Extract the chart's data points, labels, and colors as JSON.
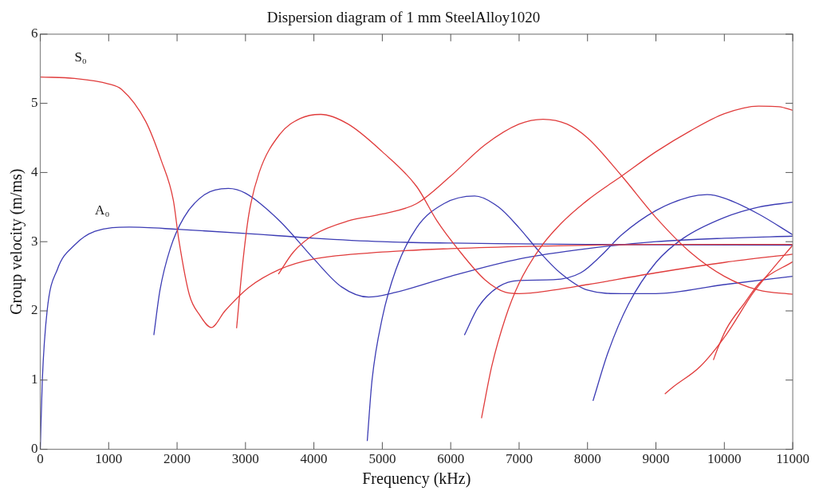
{
  "chart_data": {
    "type": "line",
    "title": "Dispersion diagram of 1 mm SteelAlloy1020",
    "xlabel": "Frequency (kHz)",
    "ylabel": "Group velocity (m/ms)",
    "xlim": [
      0,
      11000
    ],
    "xticks": [
      0,
      1000,
      2000,
      3000,
      4000,
      5000,
      6000,
      7000,
      8000,
      9000,
      10000,
      11000
    ],
    "ylim": [
      0,
      6
    ],
    "yticks": [
      0,
      1,
      2,
      3,
      4,
      5,
      6
    ],
    "grid": false,
    "legend": false,
    "marker": "none",
    "line_style": "solid",
    "series": [
      {
        "name": "S₀",
        "color": "#e03c3c",
        "x": [
          0,
          500,
          1000,
          1190,
          1540,
          1770,
          1945,
          2025,
          2180,
          2330,
          2500,
          2700,
          3050,
          3500,
          4000,
          5000,
          6000,
          7000,
          8000,
          9000,
          11000
        ],
        "values": [
          5.38,
          5.36,
          5.28,
          5.2,
          4.74,
          4.17,
          3.6,
          3.03,
          2.23,
          1.94,
          1.76,
          2.0,
          2.34,
          2.6,
          2.75,
          2.85,
          2.9,
          2.93,
          2.95,
          2.96,
          2.96
        ]
      },
      {
        "color": "#e03c3c",
        "x": [
          2870,
          2950,
          3050,
          3200,
          3500,
          3800,
          4100,
          4500,
          5000,
          5500,
          5800,
          6100,
          6500,
          6800,
          7000,
          7500,
          8000,
          9000,
          10000,
          11000
        ],
        "values": [
          1.75,
          2.6,
          3.4,
          4.0,
          4.55,
          4.78,
          4.84,
          4.7,
          4.3,
          3.8,
          3.3,
          2.9,
          2.45,
          2.27,
          2.25,
          2.3,
          2.38,
          2.55,
          2.7,
          2.82
        ]
      },
      {
        "color": "#e03c3c",
        "x": [
          3480,
          3700,
          4000,
          4500,
          5000,
          5500,
          6000,
          6500,
          7000,
          7350,
          7700,
          8000,
          8500,
          9000,
          9500,
          10000,
          10500,
          11000
        ],
        "values": [
          2.53,
          2.85,
          3.1,
          3.3,
          3.4,
          3.55,
          3.95,
          4.4,
          4.7,
          4.77,
          4.7,
          4.5,
          3.95,
          3.35,
          2.85,
          2.5,
          2.3,
          2.24
        ]
      },
      {
        "color": "#e03c3c",
        "x": [
          6450,
          6600,
          6800,
          7000,
          7300,
          7600,
          8000,
          8500,
          9000,
          9500,
          10000,
          10500,
          10800,
          11000
        ],
        "values": [
          0.45,
          1.2,
          1.9,
          2.4,
          2.9,
          3.25,
          3.6,
          3.95,
          4.3,
          4.6,
          4.85,
          4.96,
          4.95,
          4.9
        ]
      },
      {
        "color": "#e03c3c",
        "x": [
          9130,
          9250,
          9650,
          10030,
          10420,
          10700,
          11000
        ],
        "values": [
          0.8,
          0.9,
          1.2,
          1.66,
          2.26,
          2.6,
          2.95
        ]
      },
      {
        "color": "#e03c3c",
        "x": [
          9840,
          9900,
          10030,
          10300,
          10530,
          11000
        ],
        "values": [
          1.29,
          1.45,
          1.74,
          2.12,
          2.42,
          2.71
        ]
      },
      {
        "name": "A₀",
        "color": "#3c3cb4",
        "x": [
          0,
          30,
          100,
          250,
          500,
          800,
          1300,
          2000,
          3000,
          4000,
          5000,
          6000,
          7000,
          8000,
          11000
        ],
        "values": [
          0,
          1.0,
          2.0,
          2.6,
          2.95,
          3.15,
          3.21,
          3.18,
          3.12,
          3.05,
          3.0,
          2.98,
          2.97,
          2.96,
          2.95
        ]
      },
      {
        "color": "#3c3cb4",
        "x": [
          1660,
          1750,
          1900,
          2100,
          2400,
          2750,
          3000,
          3500,
          4000,
          4400,
          4800,
          5200,
          6000,
          7000,
          8000,
          9000,
          10000,
          11000
        ],
        "values": [
          1.65,
          2.3,
          2.9,
          3.35,
          3.68,
          3.77,
          3.7,
          3.3,
          2.75,
          2.35,
          2.2,
          2.27,
          2.5,
          2.75,
          2.9,
          3.0,
          3.05,
          3.08
        ]
      },
      {
        "color": "#3c3cb4",
        "x": [
          4780,
          4850,
          5000,
          5200,
          5500,
          5900,
          6350,
          6700,
          7000,
          7300,
          7600,
          8000,
          8500,
          9000,
          10000,
          11000
        ],
        "values": [
          0.12,
          1.0,
          1.9,
          2.6,
          3.2,
          3.55,
          3.66,
          3.5,
          3.2,
          2.85,
          2.55,
          2.3,
          2.25,
          2.25,
          2.38,
          2.5
        ]
      },
      {
        "color": "#3c3cb4",
        "x": [
          6200,
          6400,
          6700,
          7000,
          7500,
          7900,
          8200,
          8500,
          9000,
          9500,
          9750,
          10000,
          10500,
          11000
        ],
        "values": [
          1.65,
          2.05,
          2.35,
          2.44,
          2.45,
          2.55,
          2.8,
          3.1,
          3.45,
          3.65,
          3.68,
          3.63,
          3.4,
          3.1
        ]
      },
      {
        "color": "#3c3cb4",
        "x": [
          8080,
          8300,
          8600,
          9000,
          9400,
          10000,
          10500,
          11000
        ],
        "values": [
          0.7,
          1.4,
          2.1,
          2.7,
          3.05,
          3.35,
          3.5,
          3.57
        ]
      }
    ]
  }
}
